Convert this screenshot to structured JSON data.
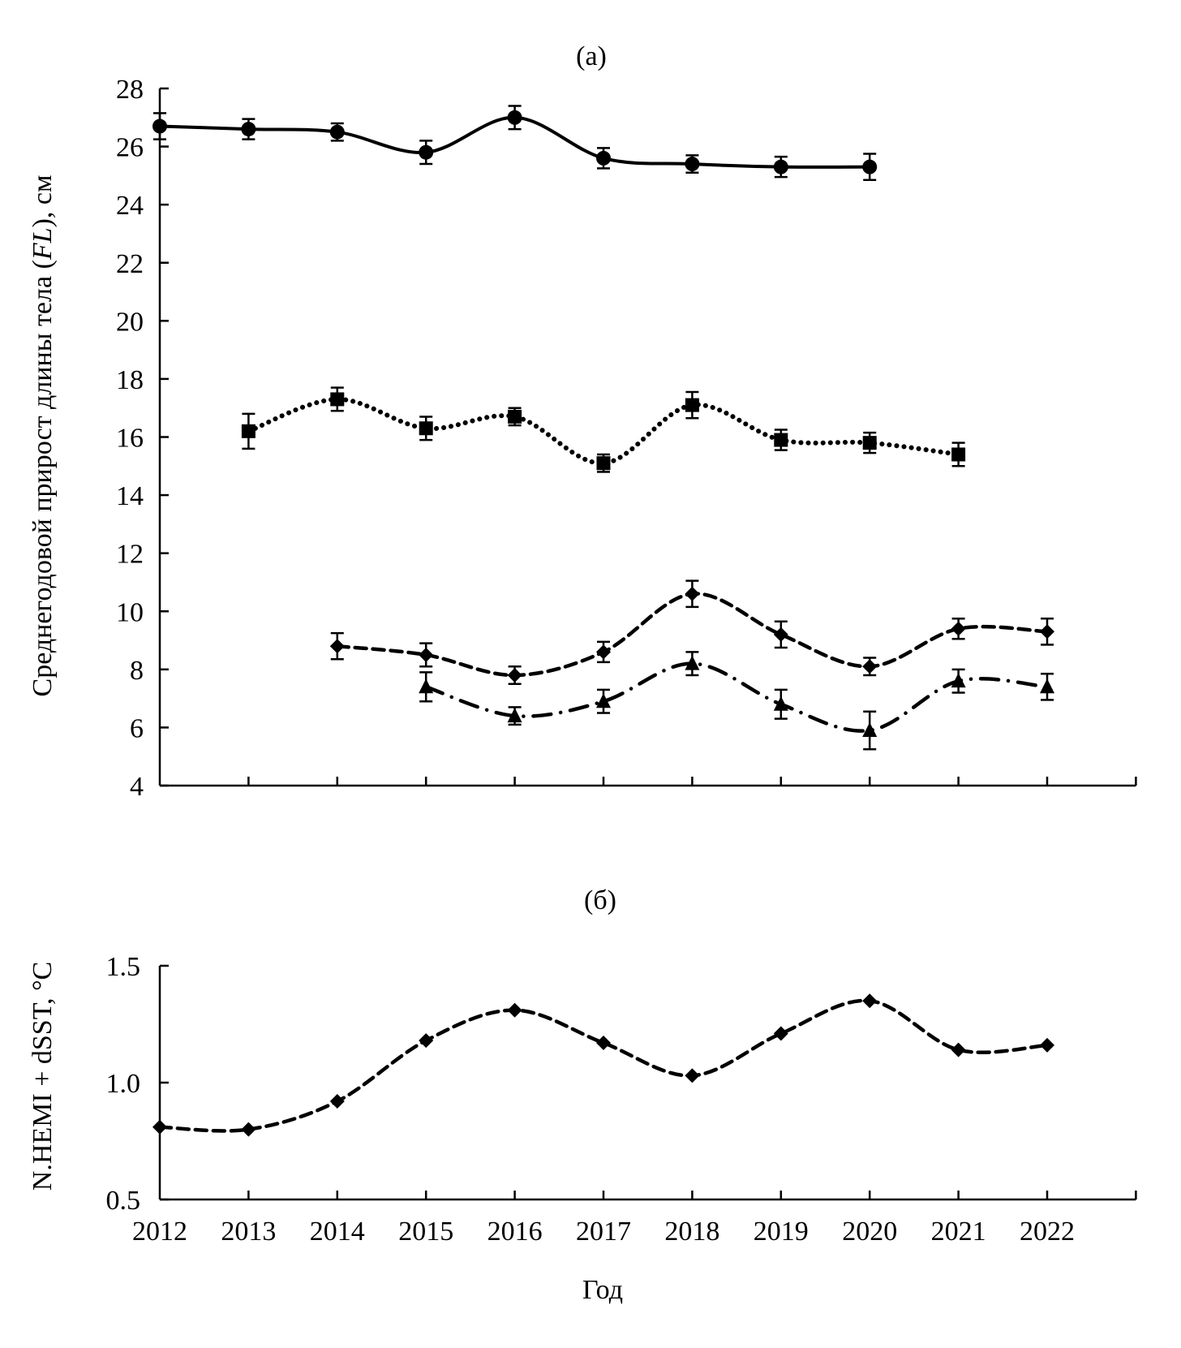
{
  "chart_data": [
    {
      "type": "line",
      "panel_label": "(a)",
      "title": "",
      "xlabel": "",
      "ylabel_parts": [
        "Среднегодовой прирост длины тела (",
        "FL",
        "), см"
      ],
      "ylabel": "Среднегодовой прирост длины тела (FL), см",
      "xlim": [
        2012,
        2023
      ],
      "ylim": [
        4,
        28
      ],
      "yticks": [
        4,
        6,
        8,
        10,
        12,
        14,
        16,
        18,
        20,
        22,
        24,
        26,
        28
      ],
      "xticks": [
        2012,
        2013,
        2014,
        2015,
        2016,
        2017,
        2018,
        2019,
        2020,
        2021,
        2022,
        2023
      ],
      "grid": false,
      "series": [
        {
          "name": "circles-solid",
          "marker": "circle",
          "linestyle": "solid",
          "x": [
            2012,
            2013,
            2014,
            2015,
            2016,
            2017,
            2018,
            2019,
            2020
          ],
          "values": [
            26.7,
            26.6,
            26.5,
            25.8,
            27.0,
            25.6,
            25.4,
            25.3,
            25.3
          ],
          "errors": [
            0.45,
            0.35,
            0.3,
            0.4,
            0.4,
            0.35,
            0.3,
            0.35,
            0.45
          ]
        },
        {
          "name": "squares-dotted",
          "marker": "square",
          "linestyle": "dotted",
          "x": [
            2013,
            2014,
            2015,
            2016,
            2017,
            2018,
            2019,
            2020,
            2021
          ],
          "values": [
            16.2,
            17.3,
            16.3,
            16.7,
            15.1,
            17.1,
            15.9,
            15.8,
            15.4
          ],
          "errors": [
            0.6,
            0.4,
            0.4,
            0.3,
            0.3,
            0.45,
            0.35,
            0.35,
            0.4
          ]
        },
        {
          "name": "diamonds-dashed",
          "marker": "diamond",
          "linestyle": "dashed",
          "x": [
            2014,
            2015,
            2016,
            2017,
            2018,
            2019,
            2020,
            2021,
            2022
          ],
          "values": [
            8.8,
            8.5,
            7.8,
            8.6,
            10.6,
            9.2,
            8.1,
            9.4,
            9.3
          ],
          "errors": [
            0.45,
            0.4,
            0.3,
            0.35,
            0.45,
            0.45,
            0.3,
            0.35,
            0.45
          ]
        },
        {
          "name": "triangles-dashdot",
          "marker": "triangle",
          "linestyle": "dashdot",
          "x": [
            2015,
            2016,
            2017,
            2018,
            2019,
            2020,
            2021,
            2022
          ],
          "values": [
            7.4,
            6.4,
            6.9,
            8.2,
            6.8,
            5.9,
            7.6,
            7.4
          ],
          "errors": [
            0.5,
            0.3,
            0.4,
            0.4,
            0.5,
            0.65,
            0.4,
            0.45
          ]
        }
      ]
    },
    {
      "type": "line",
      "panel_label": "(б)",
      "title": "",
      "xlabel": "Год",
      "ylabel": "N.HEMI + dSST, °C",
      "xlim": [
        2012,
        2023
      ],
      "ylim": [
        0.5,
        1.5
      ],
      "yticks": [
        "0.5",
        "1.0",
        "1.5"
      ],
      "xticks": [
        2012,
        2013,
        2014,
        2015,
        2016,
        2017,
        2018,
        2019,
        2020,
        2021,
        2022,
        2023
      ],
      "xticklabels": [
        "2012",
        "2013",
        "2014",
        "2015",
        "2016",
        "2017",
        "2018",
        "2019",
        "2020",
        "2021",
        "2022"
      ],
      "grid": false,
      "series": [
        {
          "name": "N.HEMI + dSST",
          "marker": "diamond",
          "linestyle": "dashed",
          "x": [
            2012,
            2013,
            2014,
            2015,
            2016,
            2017,
            2018,
            2019,
            2020,
            2021,
            2022
          ],
          "values": [
            0.81,
            0.8,
            0.92,
            1.18,
            1.31,
            1.17,
            1.03,
            1.21,
            1.35,
            1.14,
            1.16
          ]
        }
      ]
    }
  ],
  "colors": {
    "ink": "#000000",
    "background": "#ffffff"
  }
}
